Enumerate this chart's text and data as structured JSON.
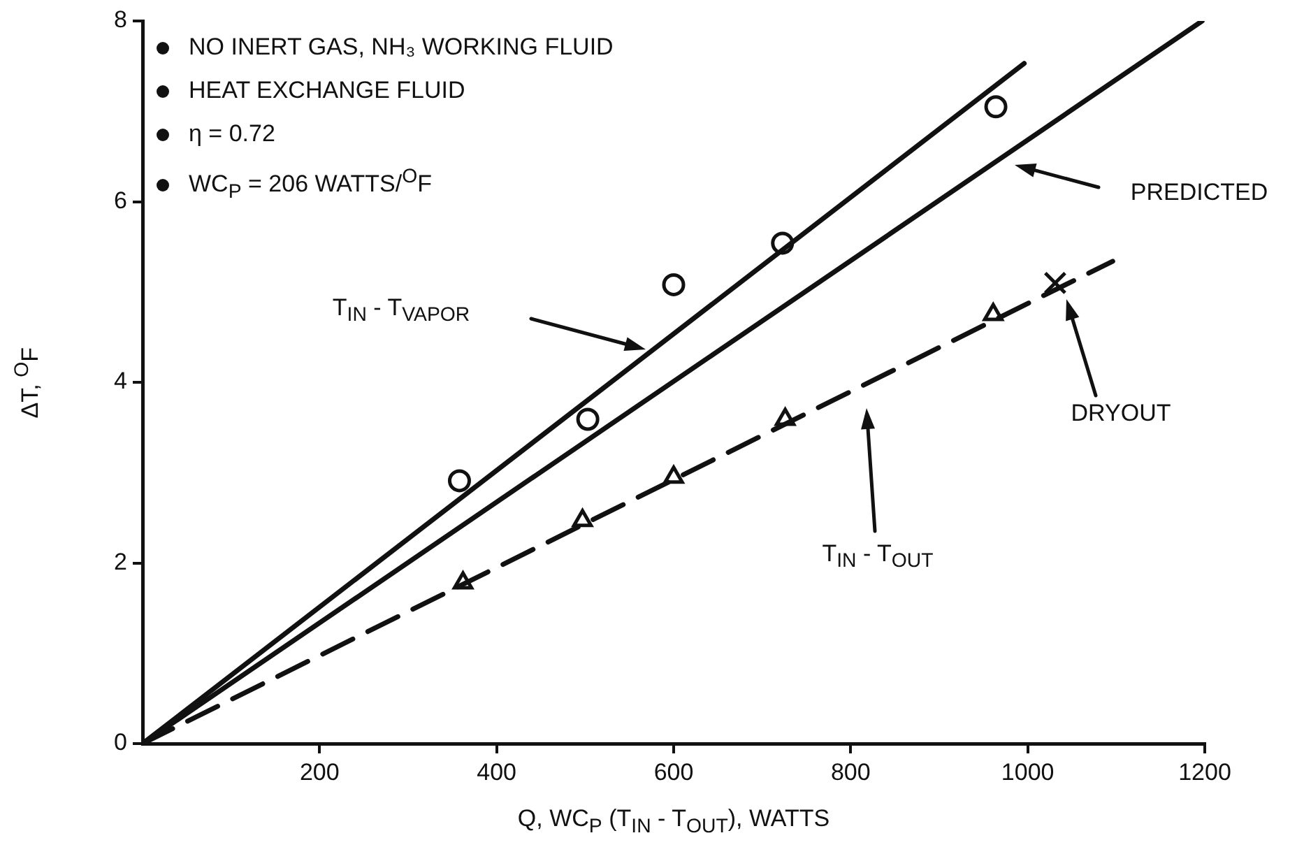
{
  "chart_data": {
    "type": "scatter",
    "xlabel": "Q, WC$_{P}$ (T$_{IN}$ - T$_{OUT}$), WATTS",
    "ylabel": "ΔT, $^{O}$F",
    "xlim": [
      0,
      1200
    ],
    "xticks": [
      200,
      400,
      600,
      800,
      1000,
      1200
    ],
    "ylim": [
      0,
      8
    ],
    "yticks": [
      0,
      2,
      4,
      6,
      8
    ],
    "grid": false,
    "legend": false,
    "series": [
      {
        "type": "line",
        "x": [
          0,
          996
        ],
        "values": [
          0,
          7.53
        ],
        "color": "#111111",
        "line_style": "solid",
        "marker": "none"
      },
      {
        "type": "line",
        "x": [
          0,
          1197
        ],
        "values": [
          0,
          8.0
        ],
        "color": "#111111",
        "line_style": "solid",
        "marker": "none"
      },
      {
        "type": "line",
        "x": [
          0,
          1096
        ],
        "values": [
          0,
          5.34
        ],
        "color": "#111111",
        "line_style": "dashed",
        "marker": "none"
      },
      {
        "type": "scatter",
        "x": [
          358,
          503,
          600,
          723,
          964
        ],
        "values": [
          2.91,
          3.59,
          5.08,
          5.54,
          7.05
        ],
        "color": "#111111",
        "marker": "circle"
      },
      {
        "type": "scatter",
        "x": [
          362,
          497,
          600,
          726,
          961
        ],
        "values": [
          1.78,
          2.47,
          2.95,
          3.59,
          4.75
        ],
        "color": "#111111",
        "marker": "triangle"
      },
      {
        "type": "scatter",
        "x": [
          1031
        ],
        "values": [
          5.1
        ],
        "color": "#111111",
        "marker": "cross"
      }
    ],
    "annotations": [
      "NO INERT GAS, NH₃ WORKING FLUID",
      "HEAT EXCHANGE FLUID",
      "η = 0.72",
      "WC$_{P}$ = 206 WATTS/$^{O}$F",
      "T$_{IN}$ - T$_{VAPOR}$",
      "PREDICTED",
      "T$_{IN}$ - T$_{OUT}$",
      "DRYOUT"
    ]
  }
}
